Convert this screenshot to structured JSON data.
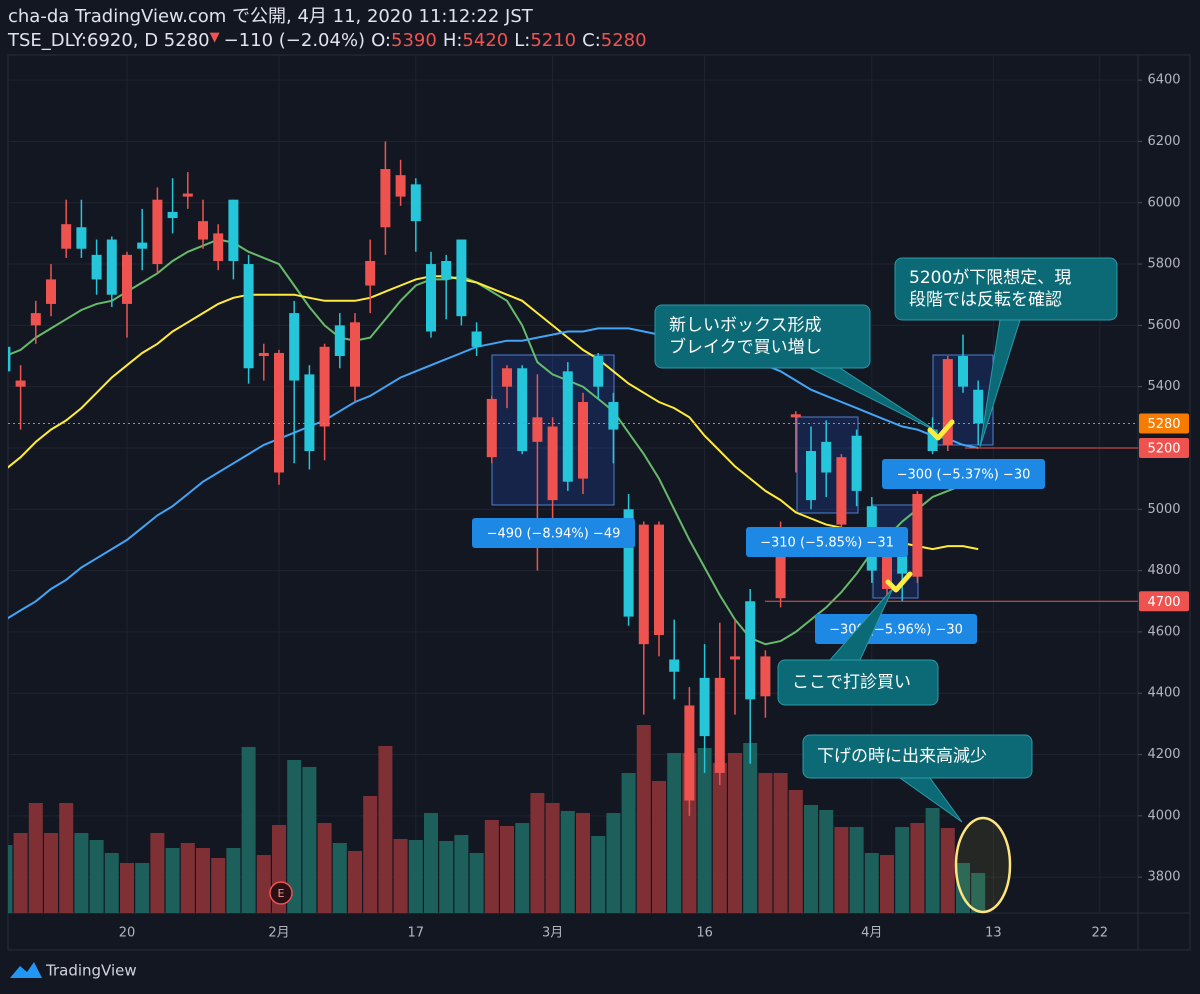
{
  "header": {
    "line1": "cha-da TradingView.com で公開, 4月 11, 2020 11:12:22 JST",
    "symbol": "TSE_DLY:6920, D 5280",
    "arrow": "▼",
    "change": "−110 (−2.04%)",
    "o_label": "O:",
    "o": "5390",
    "h_label": "H:",
    "h": "5420",
    "l_label": "L:",
    "l": "5210",
    "c_label": "C:",
    "c": "5280"
  },
  "chart_data": {
    "type": "candlestick",
    "categories": [
      null,
      null,
      null,
      null,
      null,
      null,
      null,
      null,
      "20",
      null,
      null,
      null,
      null,
      null,
      null,
      null,
      null,
      null,
      "2月",
      null,
      null,
      null,
      null,
      null,
      null,
      null,
      null,
      "17",
      null,
      null,
      null,
      null,
      null,
      null,
      null,
      null,
      "3月",
      null,
      null,
      null,
      null,
      null,
      null,
      null,
      null,
      null,
      "16",
      null,
      null,
      null,
      null,
      null,
      null,
      null,
      null,
      null,
      null,
      "4月",
      null,
      null,
      null,
      null,
      null,
      null,
      null,
      "13",
      null,
      null,
      null,
      null,
      null,
      null,
      "22"
    ],
    "open": [
      5530,
      5400,
      5600,
      5670,
      5850,
      5920,
      5830,
      5880,
      5670,
      5870,
      5800,
      5970,
      6020,
      5880,
      5810,
      6010,
      5800,
      5500,
      5120,
      5640,
      5440,
      5270,
      5600,
      5400,
      5730,
      5920,
      6020,
      6060,
      5800,
      5810,
      5880,
      5580,
      5170,
      5400,
      5460,
      5220,
      5030,
      5450,
      5100,
      5500,
      5350,
      5000,
      4560,
      4590,
      4510,
      4050,
      4450,
      4140,
      4510,
      4700,
      4390,
      4710,
      5300,
      5190,
      5220,
      4950,
      5240,
      5010,
      4740,
      4870,
      4780,
      5260,
      5210,
      5500,
      5390,
      null,
      null,
      null,
      null,
      null,
      null,
      null,
      null
    ],
    "high": [
      5560,
      5470,
      5680,
      5800,
      6010,
      6010,
      5880,
      5890,
      5840,
      5980,
      6050,
      6080,
      6100,
      6010,
      5930,
      6010,
      5830,
      5540,
      5520,
      5680,
      5470,
      5540,
      5640,
      5640,
      5880,
      6200,
      6140,
      6080,
      5840,
      5830,
      5880,
      5610,
      5370,
      5470,
      5470,
      5440,
      5300,
      5480,
      5380,
      5510,
      5380,
      5050,
      4960,
      4960,
      4640,
      4420,
      4560,
      4630,
      4640,
      4740,
      4540,
      4960,
      5320,
      5270,
      5290,
      5180,
      5260,
      5040,
      4920,
      4900,
      5060,
      5300,
      5500,
      5570,
      5420,
      null,
      null,
      null,
      null,
      null,
      null,
      null,
      null
    ],
    "low": [
      5420,
      5260,
      5540,
      5630,
      5820,
      5820,
      5700,
      5660,
      5560,
      5780,
      5770,
      5900,
      5980,
      5850,
      5780,
      5750,
      5410,
      5420,
      5080,
      5150,
      5130,
      5160,
      5460,
      5350,
      5640,
      5830,
      5990,
      5840,
      5560,
      5620,
      5600,
      5500,
      5150,
      5330,
      5180,
      4800,
      4950,
      5060,
      5050,
      5360,
      5150,
      4620,
      4330,
      4520,
      4380,
      4000,
      4140,
      4100,
      4330,
      4170,
      4320,
      4680,
      5120,
      5000,
      5040,
      4900,
      5010,
      4760,
      4700,
      4700,
      4760,
      5180,
      5190,
      5380,
      5210,
      null,
      null,
      null,
      null,
      null,
      null,
      null,
      null
    ],
    "close": [
      5450,
      5420,
      5640,
      5750,
      5930,
      5850,
      5750,
      5700,
      5830,
      5850,
      6010,
      5950,
      6030,
      5940,
      5900,
      5810,
      5460,
      5510,
      5510,
      5420,
      5190,
      5530,
      5500,
      5610,
      5810,
      6110,
      6090,
      5940,
      5580,
      5750,
      5630,
      5530,
      5360,
      5460,
      5190,
      5300,
      5270,
      5090,
      5350,
      5400,
      5260,
      4650,
      4950,
      4950,
      4470,
      4360,
      4260,
      4450,
      4520,
      4380,
      4520,
      4940,
      5310,
      5030,
      5120,
      5170,
      5060,
      4800,
      4880,
      4790,
      5050,
      5190,
      5490,
      5400,
      5280,
      null,
      null,
      null,
      null,
      null,
      null,
      null,
      null
    ],
    "volume": [
      68,
      80,
      110,
      80,
      110,
      80,
      73,
      60,
      50,
      50,
      80,
      65,
      70,
      65,
      55,
      65,
      166,
      58,
      88,
      153,
      146,
      90,
      70,
      62,
      117,
      167,
      74,
      73,
      100,
      72,
      78,
      60,
      93,
      87,
      90,
      120,
      110,
      102,
      100,
      77,
      100,
      140,
      188,
      132,
      160,
      160,
      165,
      150,
      160,
      170,
      140,
      140,
      123,
      108,
      103,
      86,
      86,
      60,
      58,
      86,
      90,
      105,
      85,
      50,
      40,
      null,
      null,
      null,
      null,
      null,
      null,
      null,
      null
    ],
    "up_color": "#ef5350",
    "down_color": "#26c6da",
    "up_volume_color": "#7e3035",
    "down_volume_color": "#1d5f5a",
    "moving_averages": [
      {
        "color": "#66bb6a",
        "values": [
          5500,
          5520,
          5560,
          5590,
          5620,
          5650,
          5670,
          5680,
          5710,
          5740,
          5770,
          5810,
          5840,
          5860,
          5880,
          5870,
          5840,
          5820,
          5800,
          5730,
          5660,
          5600,
          5560,
          5550,
          5560,
          5620,
          5680,
          5730,
          5750,
          5750,
          5760,
          5740,
          5710,
          5680,
          5600,
          5480,
          5440,
          5420,
          5400,
          5360,
          5320,
          5250,
          5180,
          5100,
          5000,
          4900,
          4810,
          4720,
          4640,
          4580,
          4560,
          4570,
          4600,
          4640,
          4680,
          4730,
          4790,
          4860,
          4910,
          4960,
          5000,
          5040,
          5060,
          5080,
          5090,
          null,
          null,
          null,
          null,
          null,
          null,
          null,
          null
        ]
      },
      {
        "color": "#ffeb3b",
        "values": [
          5130,
          5170,
          5220,
          5260,
          5290,
          5330,
          5380,
          5430,
          5470,
          5510,
          5540,
          5580,
          5610,
          5640,
          5670,
          5690,
          5700,
          5700,
          5700,
          5700,
          5690,
          5680,
          5680,
          5680,
          5690,
          5710,
          5730,
          5750,
          5760,
          5760,
          5750,
          5740,
          5720,
          5700,
          5680,
          5640,
          5600,
          5560,
          5520,
          5490,
          5450,
          5410,
          5380,
          5350,
          5330,
          5300,
          5240,
          5190,
          5140,
          5100,
          5060,
          5030,
          4990,
          4970,
          4950,
          4940,
          4930,
          4920,
          4900,
          4890,
          4880,
          4870,
          4880,
          4880,
          4870,
          null,
          null,
          null,
          null,
          null,
          null,
          null,
          null
        ]
      },
      {
        "color": "#42a5f5",
        "values": [
          4640,
          4670,
          4700,
          4740,
          4770,
          4810,
          4840,
          4870,
          4900,
          4940,
          4980,
          5010,
          5050,
          5090,
          5120,
          5150,
          5180,
          5210,
          5230,
          5250,
          5270,
          5290,
          5320,
          5350,
          5370,
          5400,
          5430,
          5450,
          5470,
          5490,
          5510,
          5530,
          5540,
          5550,
          5550,
          5560,
          5570,
          5580,
          5580,
          5590,
          5590,
          5590,
          5580,
          5570,
          5560,
          5550,
          5540,
          5530,
          5510,
          5490,
          5470,
          5450,
          5420,
          5390,
          5370,
          5350,
          5330,
          5310,
          5290,
          5270,
          5260,
          5240,
          5230,
          5210,
          5200,
          null,
          null,
          null,
          null,
          null,
          null,
          null,
          null
        ]
      }
    ],
    "ylim": [
      3683,
      6482
    ],
    "yticks": [
      3800,
      4000,
      4200,
      4400,
      4600,
      4800,
      5000,
      5200,
      5400,
      5600,
      5800,
      6000,
      6200,
      6400
    ],
    "grid": true,
    "price_lines": [
      {
        "value": 5280,
        "color": "#f57c00"
      },
      {
        "value": 5200,
        "color": "#ef5350"
      },
      {
        "value": 4700,
        "color": "#ef5350"
      }
    ],
    "measure_labels": [
      "−490 (−8.94%) −49",
      "−310 (−5.85%) −31",
      "−300 (−5.37%) −30",
      "−300 (−5.96%) −30"
    ],
    "callouts": [
      {
        "lines": [
          "新しいボックス形成",
          "ブレイクで買い増し"
        ]
      },
      {
        "lines": [
          "5200が下限想定、現",
          "段階では反転を確認"
        ]
      },
      {
        "lines": [
          "ここで打診買い"
        ]
      },
      {
        "lines": [
          "下げの時に出来高減少"
        ]
      }
    ],
    "event_marker": "E"
  },
  "footer": {
    "logo": "TradingView"
  }
}
